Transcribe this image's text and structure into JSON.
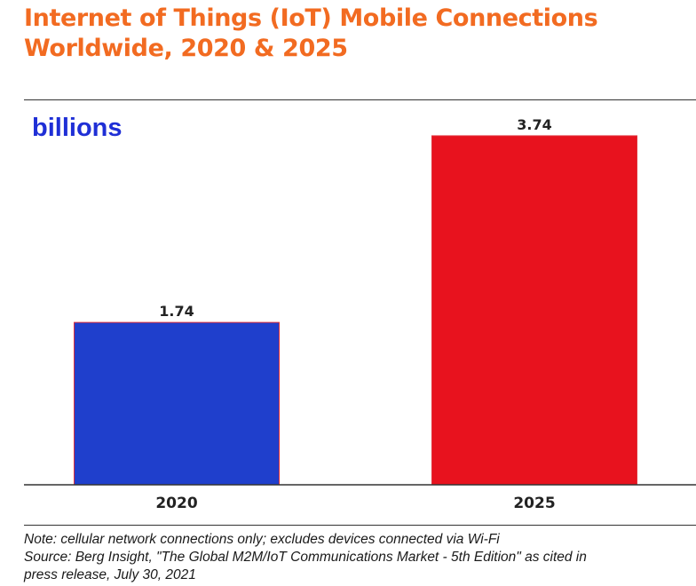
{
  "chart_data": {
    "type": "bar",
    "title": "Internet of Things (IoT) Mobile Connections",
    "subtitle": "Worldwide, 2020 & 2025",
    "unit_label": "billions",
    "categories": [
      "2020",
      "2025"
    ],
    "values": [
      1.74,
      3.74
    ],
    "value_labels": [
      "1.74",
      "3.74"
    ],
    "ylim": [
      0,
      4.12
    ],
    "grid": false,
    "legend": "none",
    "bar_colors": [
      "#1f3fcc",
      "#e8121e"
    ],
    "bar_outline": "#e0303a"
  },
  "footnote": {
    "note": "Note: cellular network connections only; excludes devices connected via Wi-Fi",
    "source": "Source: Berg Insight, \"The Global M2M/IoT Communications Market - 5th Edition\" as cited in",
    "release": "press release, July 30, 2021"
  },
  "colors": {
    "title": "#f26b21",
    "unit_label": "#1f2fd6",
    "axis_text": "#222222"
  }
}
